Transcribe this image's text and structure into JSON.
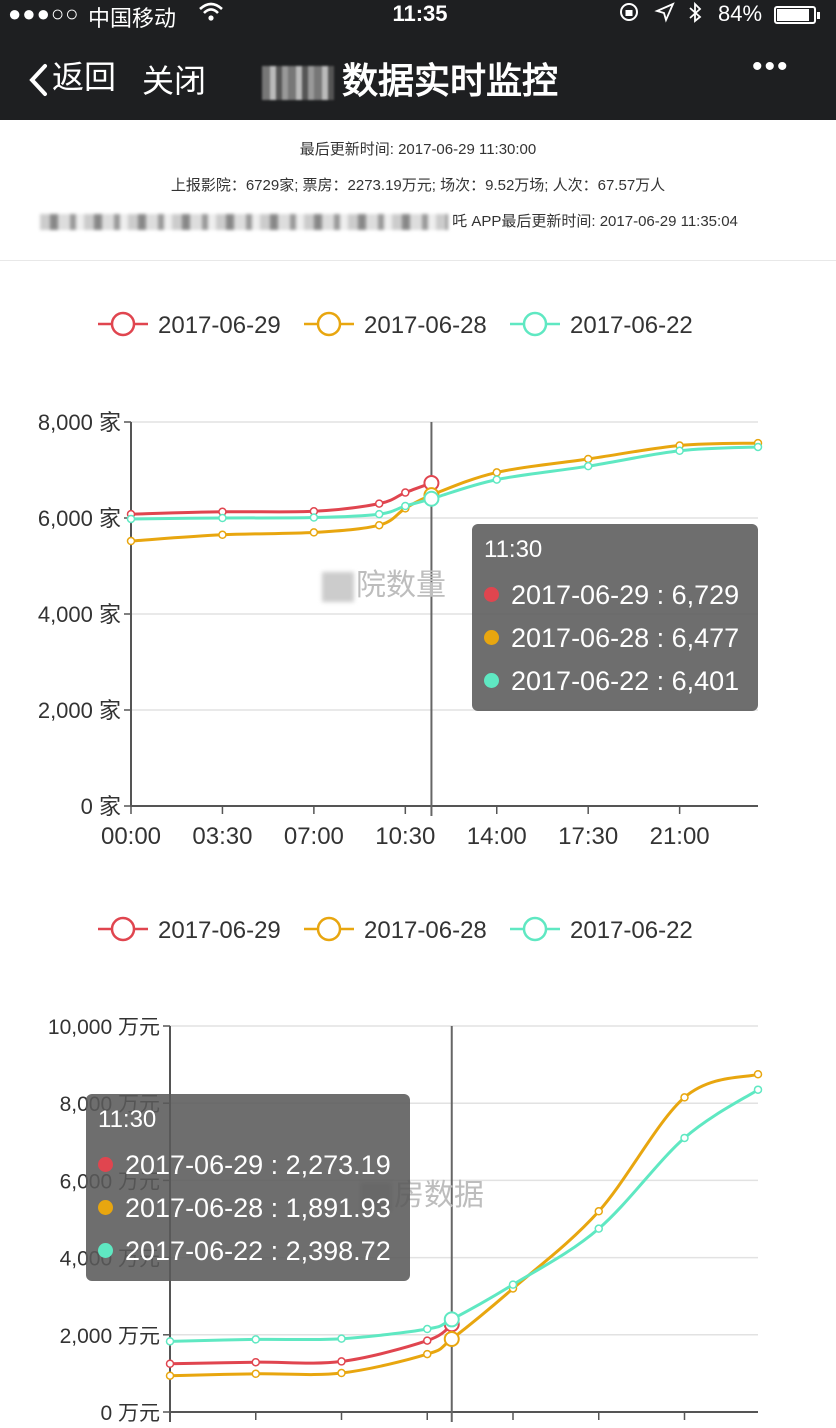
{
  "statusbar": {
    "signal": "●●●○○",
    "carrier": "中国移动",
    "wifi_icon": "wifi-icon",
    "time": "11:35",
    "battery": "84%"
  },
  "navbar": {
    "back_label": "返回",
    "close_label": "关闭",
    "title": "数据实时监控",
    "more_label": "•••"
  },
  "info": {
    "last_update": "最后更新时间: 2017-06-29 11:30:00",
    "summary": "上报影院：6729家; 票房：2273.19万元; 场次：9.52万场; 人次：67.57万人",
    "app_update": "APP最后更新时间: 2017-06-29 11:35:04",
    "app_update_prefix": "吒"
  },
  "colors": {
    "red": "#e0454f",
    "orange": "#e8a60f",
    "teal": "#5fe8c2",
    "grid": "#e2e2e2",
    "axis": "#555555"
  },
  "chart_data": [
    {
      "type": "line",
      "watermark": "院数量",
      "legend": [
        "2017-06-29",
        "2017-06-28",
        "2017-06-22"
      ],
      "y_ticks": [
        "8,000 家",
        "6,000 家",
        "4,000 家",
        "2,000 家",
        "0 家"
      ],
      "x_ticks": [
        "00:00",
        "03:30",
        "07:00",
        "10:30",
        "14:00",
        "17:30",
        "21:00"
      ],
      "ylim": [
        0,
        8000
      ],
      "x_hours": [
        0,
        3.5,
        7,
        9.5,
        10.5,
        11.5,
        14,
        17.5,
        21,
        24
      ],
      "series": [
        {
          "name": "2017-06-29",
          "x": [
            0,
            3.5,
            7,
            9.5,
            10.5,
            11.5
          ],
          "values": [
            6080,
            6130,
            6140,
            6300,
            6530,
            6729
          ]
        },
        {
          "name": "2017-06-28",
          "x": [
            0,
            3.5,
            7,
            9.5,
            10.5,
            11.5,
            14,
            17.5,
            21,
            24
          ],
          "values": [
            5520,
            5650,
            5700,
            5850,
            6200,
            6477,
            6950,
            7230,
            7510,
            7560
          ]
        },
        {
          "name": "2017-06-22",
          "x": [
            0,
            3.5,
            7,
            9.5,
            10.5,
            11.5,
            14,
            17.5,
            21,
            24
          ],
          "values": [
            5980,
            6000,
            6010,
            6080,
            6250,
            6401,
            6800,
            7080,
            7400,
            7480
          ]
        }
      ],
      "tooltip": {
        "time": "11:30",
        "rows": [
          "2017-06-29 : 6,729",
          "2017-06-28 : 6,477",
          "2017-06-22 : 6,401"
        ]
      }
    },
    {
      "type": "line",
      "watermark": "房数据",
      "legend": [
        "2017-06-29",
        "2017-06-28",
        "2017-06-22"
      ],
      "y_ticks": [
        "10,000 万元",
        "8,000 万元",
        "6,000 万元",
        "4,000 万元",
        "2,000 万元",
        "0 万元"
      ],
      "ylim": [
        0,
        10000
      ],
      "series": [
        {
          "name": "2017-06-29",
          "x": [
            0,
            3.5,
            7,
            10.5,
            11.5
          ],
          "values": [
            1250,
            1290,
            1310,
            1850,
            2273.19
          ]
        },
        {
          "name": "2017-06-28",
          "x": [
            0,
            3.5,
            7,
            10.5,
            11.5,
            14,
            17.5,
            21,
            24
          ],
          "values": [
            940,
            990,
            1010,
            1500,
            1891.93,
            3200,
            5200,
            8150,
            8750
          ]
        },
        {
          "name": "2017-06-22",
          "x": [
            0,
            3.5,
            7,
            10.5,
            11.5,
            14,
            17.5,
            21,
            24
          ],
          "values": [
            1830,
            1880,
            1900,
            2150,
            2398.72,
            3300,
            4750,
            7100,
            8350
          ]
        }
      ],
      "tooltip": {
        "time": "11:30",
        "rows": [
          "2017-06-29 : 2,273.19",
          "2017-06-28 : 1,891.93",
          "2017-06-22 : 2,398.72"
        ]
      }
    }
  ]
}
